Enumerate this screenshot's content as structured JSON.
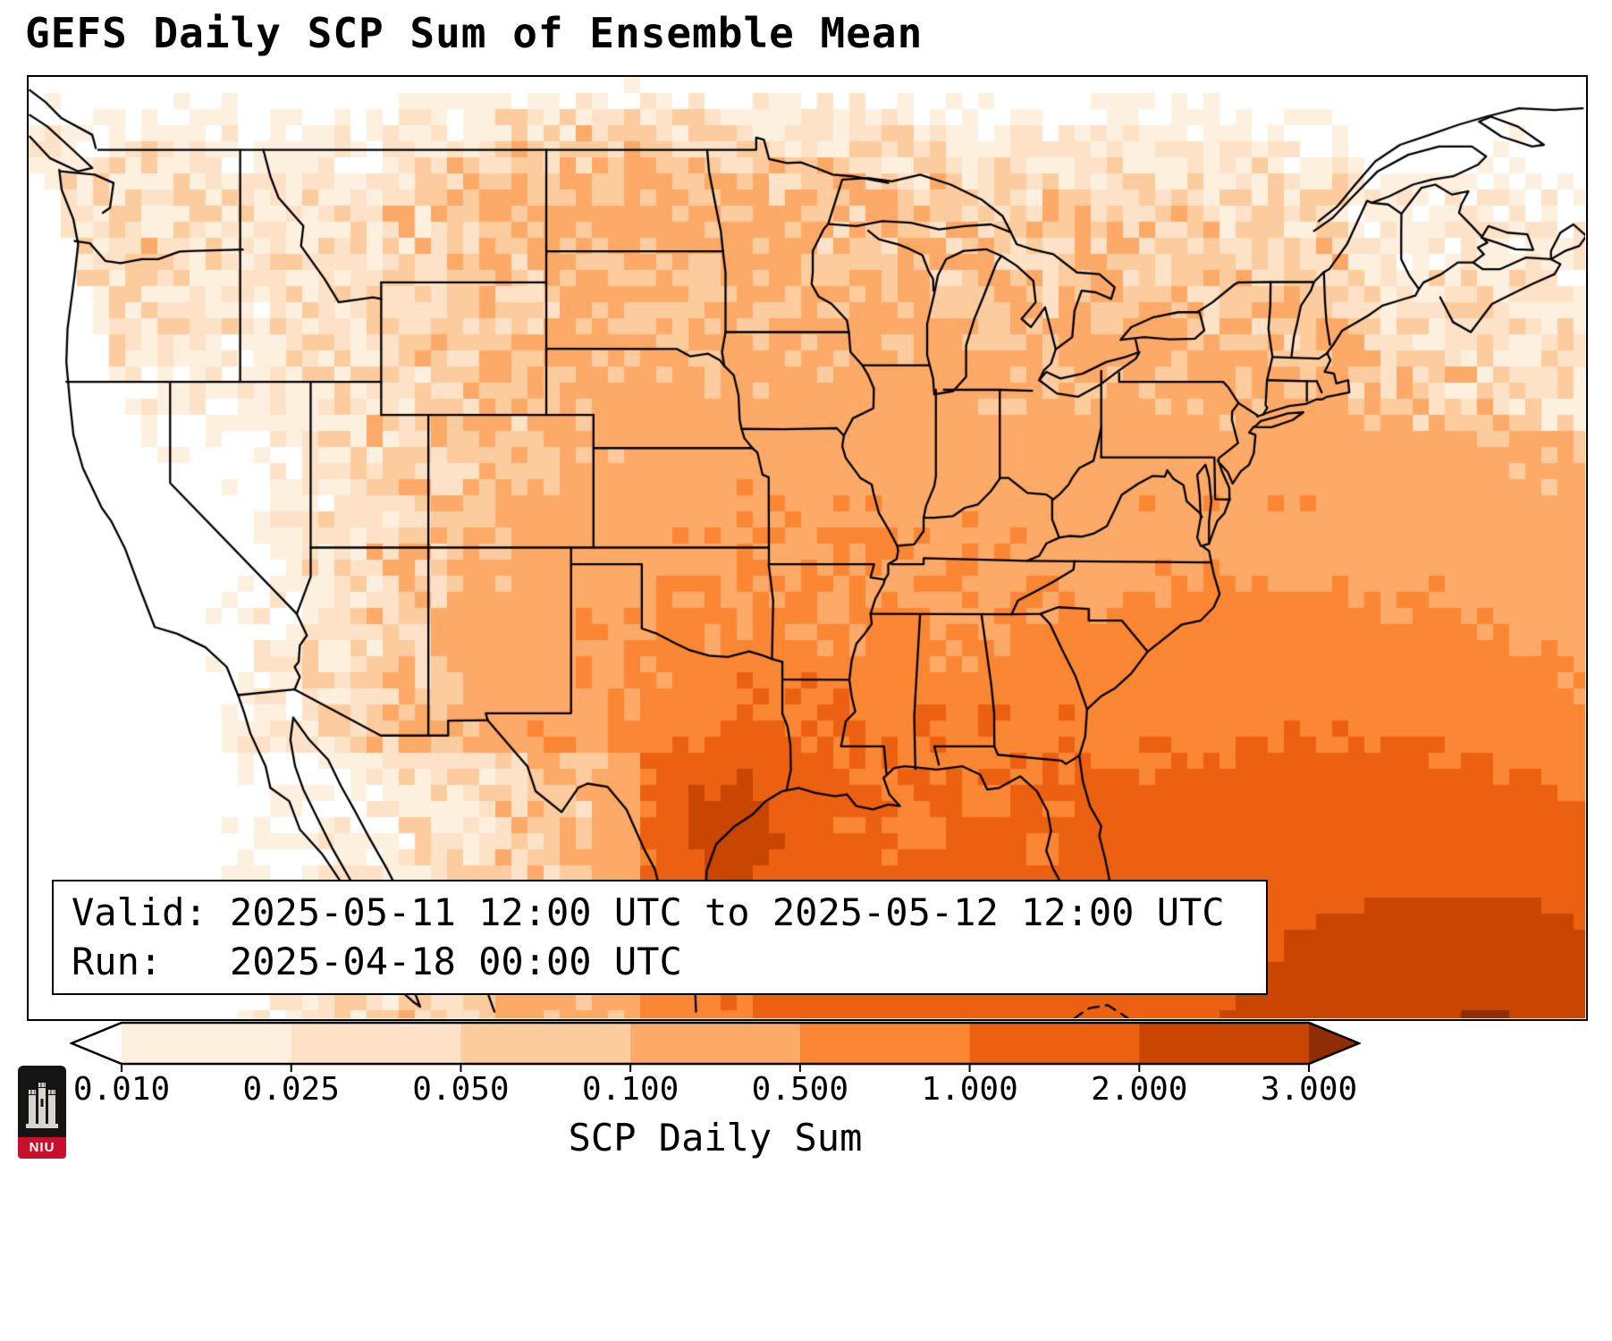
{
  "title": "GEFS Daily SCP Sum of Ensemble Mean",
  "info_box": {
    "valid_line": "Valid: 2025-05-11 12:00 UTC to 2025-05-12 12:00 UTC",
    "run_line": "Run:   2025-04-18 00:00 UTC"
  },
  "colorbar": {
    "label": "SCP Daily Sum",
    "ticks": [
      "0.010",
      "0.025",
      "0.050",
      "0.100",
      "0.500",
      "1.000",
      "2.000",
      "3.000"
    ],
    "tick_values": [
      0.01,
      0.025,
      0.05,
      0.1,
      0.5,
      1,
      2,
      3
    ],
    "segment_colors": [
      "#fef0df",
      "#fde2c7",
      "#fdcc9e",
      "#fda968",
      "#fb8735",
      "#ec6111",
      "#c94602"
    ],
    "under_color": "#ffffff",
    "over_color": "#8f2d04"
  },
  "map": {
    "region": "CONUS",
    "line_color": "#000000",
    "background": "#ffffff"
  },
  "logo": {
    "text": "NIU",
    "band_color": "#c8102e",
    "box_color": "#161413"
  },
  "chart_data": {
    "type": "heatmap",
    "title": "GEFS Daily SCP Sum of Ensemble Mean",
    "colorbar_label": "SCP Daily Sum",
    "levels": [
      0.01,
      0.025,
      0.05,
      0.1,
      0.5,
      1,
      2,
      3
    ],
    "legend_position": "bottom",
    "valid": "2025-05-11 12:00 UTC to 2025-05-12 12:00 UTC",
    "run": "2025-04-18 00:00 UTC"
  }
}
